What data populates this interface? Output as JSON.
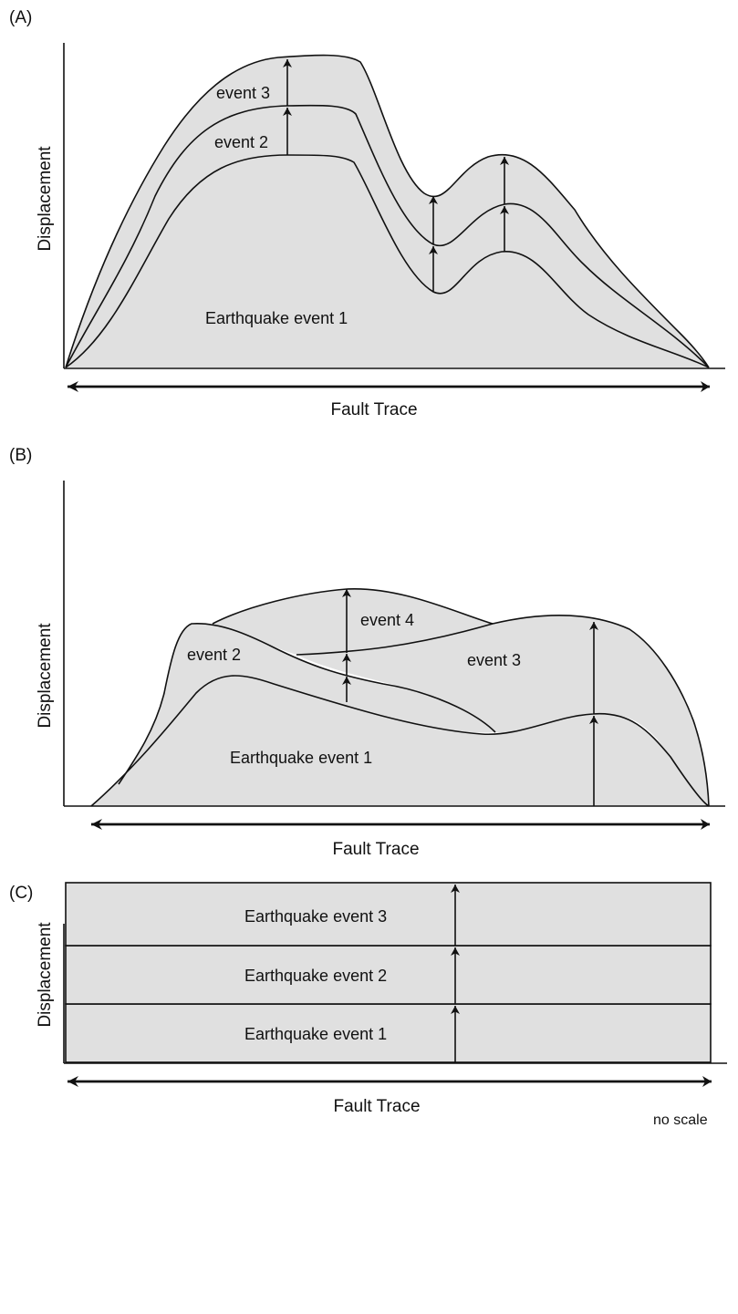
{
  "panels": [
    {
      "id": "A",
      "label": "(A)",
      "ylabel": "Displacement",
      "xlabel": "Fault Trace",
      "events": [
        "Earthquake event 1",
        "event 2",
        "event 3"
      ]
    },
    {
      "id": "B",
      "label": "(B)",
      "ylabel": "Displacement",
      "xlabel": "Fault Trace",
      "events": [
        "Earthquake event 1",
        "event 2",
        "event 3",
        "event 4"
      ]
    },
    {
      "id": "C",
      "label": "(C)",
      "ylabel": "Displacement",
      "xlabel": "Fault Trace",
      "events": [
        "Earthquake event 1",
        "Earthquake event 2",
        "Earthquake event 3"
      ]
    }
  ],
  "footnote": "no scale",
  "colors": {
    "fill": "#e0e0e0",
    "line": "#111111"
  }
}
